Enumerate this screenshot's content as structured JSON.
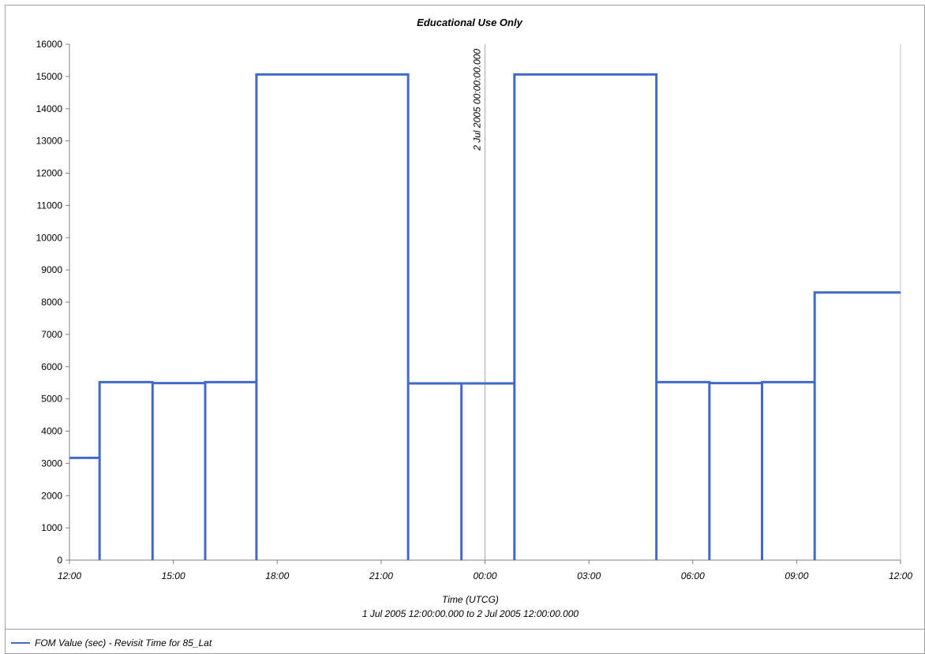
{
  "chart_data": {
    "type": "line",
    "step": true,
    "title": "Educational Use Only",
    "xlabel": "Time (UTCG)",
    "xrange_label": "1 Jul 2005 12:00:00.000  to  2 Jul 2005 12:00:00.000",
    "x_unit": "hours after 1 Jul 2005 12:00",
    "xlim": [
      0,
      24
    ],
    "ylim": [
      0,
      16000
    ],
    "y_ticks": [
      0,
      1000,
      2000,
      3000,
      4000,
      5000,
      6000,
      7000,
      8000,
      9000,
      10000,
      11000,
      12000,
      13000,
      14000,
      15000,
      16000
    ],
    "x_ticks": [
      {
        "x": 0,
        "label": "12:00"
      },
      {
        "x": 3,
        "label": "15:00"
      },
      {
        "x": 6,
        "label": "18:00"
      },
      {
        "x": 9,
        "label": "21:00"
      },
      {
        "x": 12,
        "label": "00:00"
      },
      {
        "x": 15,
        "label": "03:00"
      },
      {
        "x": 18,
        "label": "06:00"
      },
      {
        "x": 21,
        "label": "09:00"
      },
      {
        "x": 24,
        "label": "12:00"
      }
    ],
    "marker": {
      "x": 12,
      "label": "2 Jul 2005 00:00:00.000"
    },
    "grid": false,
    "legend_position": "bottom",
    "color": "#4169c8",
    "series": [
      {
        "name": "FOM Value (sec) - Revisit Time for 85_Lat",
        "segments": [
          {
            "x0": 0.0,
            "x1": 0.87,
            "y": 3170
          },
          {
            "x0": 0.87,
            "x1": 2.4,
            "y": 5520
          },
          {
            "x0": 2.4,
            "x1": 3.92,
            "y": 5490
          },
          {
            "x0": 3.92,
            "x1": 5.4,
            "y": 5520
          },
          {
            "x0": 5.4,
            "x1": 9.78,
            "y": 15060
          },
          {
            "x0": 9.78,
            "x1": 11.32,
            "y": 5480
          },
          {
            "x0": 11.32,
            "x1": 12.85,
            "y": 5480
          },
          {
            "x0": 12.85,
            "x1": 16.95,
            "y": 15060
          },
          {
            "x0": 16.95,
            "x1": 18.48,
            "y": 5520
          },
          {
            "x0": 18.48,
            "x1": 20.0,
            "y": 5490
          },
          {
            "x0": 20.0,
            "x1": 21.52,
            "y": 5520
          },
          {
            "x0": 21.52,
            "x1": 24.0,
            "y": 8300
          }
        ]
      }
    ]
  }
}
